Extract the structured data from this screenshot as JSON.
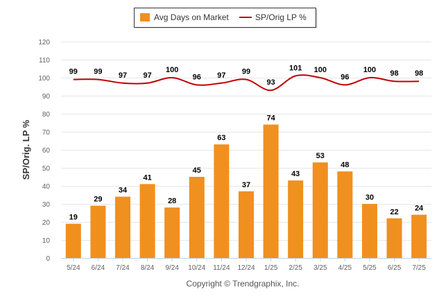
{
  "chart_data": {
    "type": "bar",
    "categories": [
      "5/24",
      "6/24",
      "7/24",
      "8/24",
      "9/24",
      "10/24",
      "11/24",
      "12/24",
      "1/25",
      "2/25",
      "3/25",
      "4/25",
      "5/25",
      "6/25",
      "7/25"
    ],
    "series": [
      {
        "name": "Avg Days on Market",
        "type": "bar",
        "color": "#F0901E",
        "values": [
          19,
          29,
          34,
          41,
          28,
          45,
          63,
          37,
          74,
          43,
          53,
          48,
          30,
          22,
          24
        ]
      },
      {
        "name": "SP/Orig LP %",
        "type": "line",
        "color": "#C00000",
        "values": [
          99,
          99,
          97,
          97,
          100,
          96,
          97,
          99,
          93,
          101,
          100,
          96,
          100,
          98,
          98
        ]
      }
    ],
    "ylabel": "SP/Orig. LP %",
    "ylim": [
      0,
      120
    ],
    "yticks": [
      0,
      10,
      20,
      30,
      40,
      50,
      60,
      70,
      80,
      90,
      100,
      110,
      120
    ],
    "grid": true,
    "legend_position": "top-center",
    "credit": "Copyright © Trendgraphix, Inc."
  }
}
